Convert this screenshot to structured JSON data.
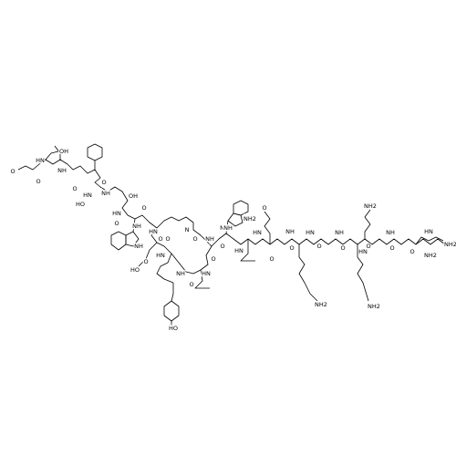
{
  "molecule": {
    "atom_labels": [
      "O",
      "HN",
      "OH",
      "O",
      "NH",
      "HN",
      "O",
      "HO",
      "NH",
      "O",
      "OH",
      "HN",
      "O",
      "NH",
      "O",
      "NH",
      "O",
      "HN",
      "HO",
      "O",
      "HN",
      "O",
      "NH",
      "O",
      "HN",
      "O",
      "HO",
      "N",
      "O",
      "NH",
      "O",
      "HN",
      "NH",
      "O",
      "HN",
      "O",
      "NH",
      "O",
      "HN",
      "O",
      "NH",
      "O",
      "HN",
      "O",
      "NH",
      "O",
      "HN",
      "O",
      "NH2",
      "NH2",
      "NH2",
      "NH2",
      "NH2",
      "NH2",
      "NH"
    ]
  }
}
